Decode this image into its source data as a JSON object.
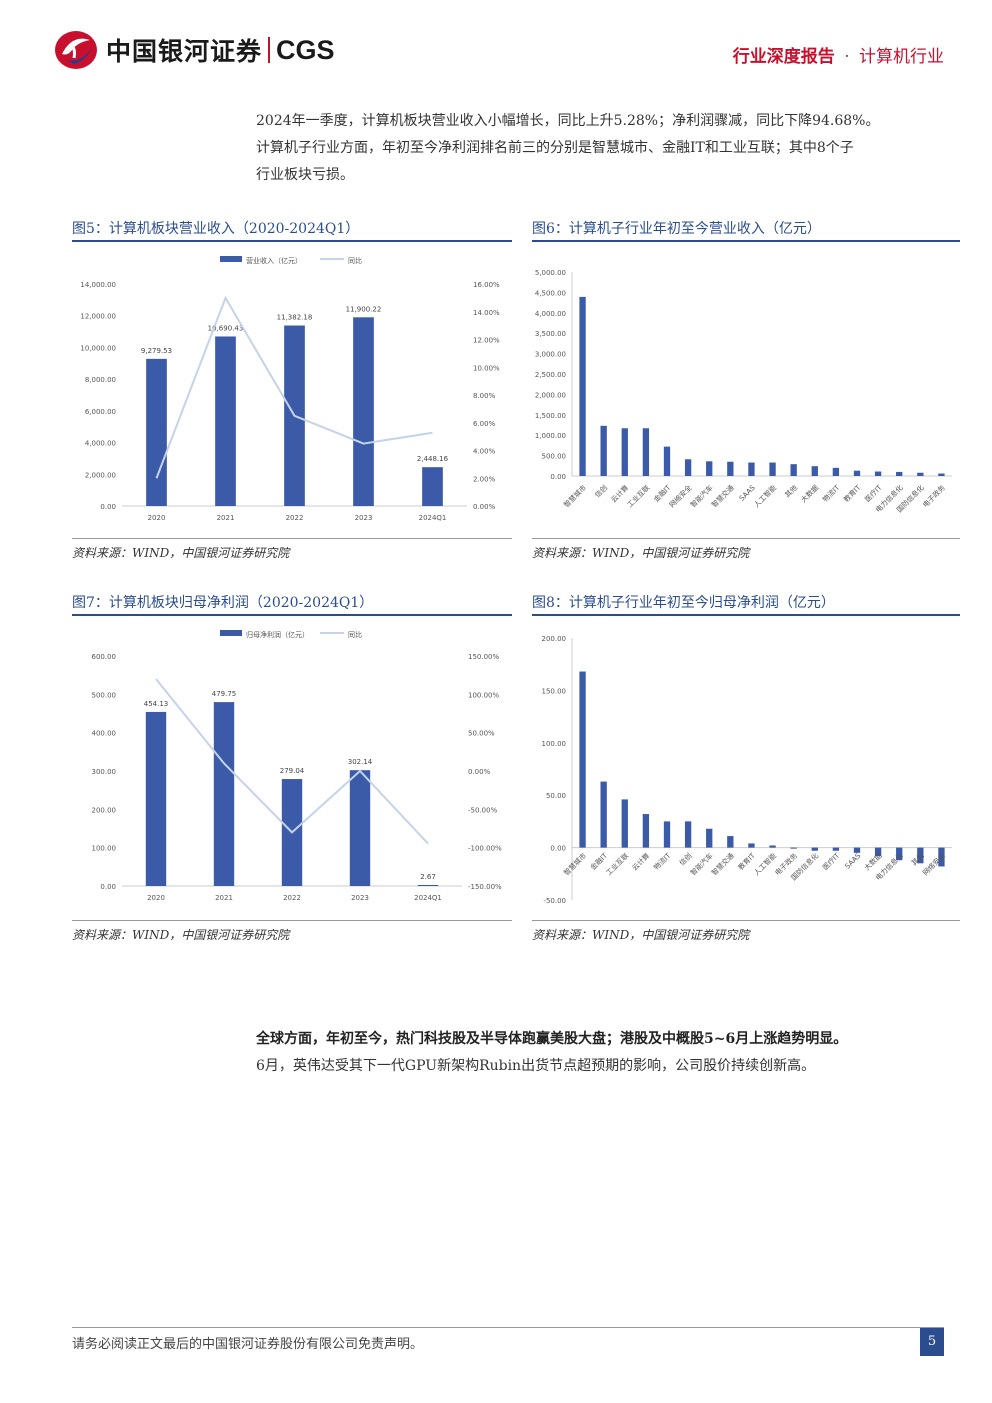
{
  "header": {
    "logo_text": "中国银河证券",
    "logo_cgs": "CGS",
    "report_type": "行业深度报告",
    "separator": "·",
    "industry": "计算机行业"
  },
  "intro_paragraph": {
    "line1": "2024年一季度，计算机板块营业收入小幅增长，同比上升5.28%；净利润骤减，同比下降94.68%。",
    "line2": "计算机子行业方面，年初至今净利润排名前三的分别是智慧城市、金融IT和工业互联；其中8个子",
    "line3": "行业板块亏损。"
  },
  "fig5": {
    "title": "图5：计算机板块营业收入（2020-2024Q1）",
    "source": "资料来源：WIND，中国银河证券研究院"
  },
  "fig6": {
    "title": "图6：计算机子行业年初至今营业收入（亿元）",
    "source": "资料来源：WIND，中国银河证券研究院"
  },
  "fig7": {
    "title": "图7：计算机板块归母净利润（2020-2024Q1）",
    "source": "资料来源：WIND，中国银河证券研究院"
  },
  "fig8": {
    "title": "图8：计算机子行业年初至今归母净利润（亿元）",
    "source": "资料来源：WIND，中国银河证券研究院"
  },
  "chart_data": [
    {
      "id": "fig5",
      "type": "bar",
      "categories": [
        "2020",
        "2021",
        "2022",
        "2023",
        "2024Q1"
      ],
      "series": [
        {
          "name": "营业收入（亿元）",
          "type": "bar",
          "axis": "left",
          "values": [
            9279.53,
            10690.43,
            11382.18,
            11900.22,
            2448.16
          ],
          "labels": [
            "9,279.53",
            "10,690.43",
            "11,382.18",
            "11,900.22",
            "2,448.16"
          ]
        },
        {
          "name": "同比",
          "type": "line",
          "axis": "right",
          "values": [
            2.0,
            15.0,
            6.5,
            4.5,
            5.28
          ]
        }
      ],
      "yticks_left": [
        "0.00",
        "2,000.00",
        "4,000.00",
        "6,000.00",
        "8,000.00",
        "10,000.00",
        "12,000.00",
        "14,000.00"
      ],
      "yticks_right": [
        "0.00%",
        "2.00%",
        "4.00%",
        "6.00%",
        "8.00%",
        "10.00%",
        "12.00%",
        "14.00%",
        "16.00%"
      ],
      "ylim_left": [
        0,
        14000
      ],
      "ylim_right": [
        0,
        16
      ],
      "legend": "top",
      "bar_color": "#3b5ba9",
      "line_color": "#c5d3ea"
    },
    {
      "id": "fig6",
      "type": "bar",
      "categories": [
        "智慧城市",
        "信创",
        "云计算",
        "工业互联",
        "金融IT",
        "网络安全",
        "智能汽车",
        "智慧交通",
        "SAAS",
        "人工智能",
        "其他",
        "大数据",
        "物流IT",
        "教育IT",
        "医疗IT",
        "电力信息化",
        "国防信息化",
        "电子政务"
      ],
      "values": [
        4390,
        1230,
        1170,
        1170,
        720,
        410,
        360,
        350,
        330,
        330,
        290,
        240,
        200,
        130,
        110,
        100,
        80,
        60
      ],
      "yticks": [
        "0.00",
        "500.00",
        "1,000.00",
        "1,500.00",
        "2,000.00",
        "2,500.00",
        "3,000.00",
        "3,500.00",
        "4,000.00",
        "4,500.00",
        "5,000.00"
      ],
      "ylim": [
        0,
        5000
      ],
      "bar_color": "#3b5ba9"
    },
    {
      "id": "fig7",
      "type": "bar",
      "categories": [
        "2020",
        "2021",
        "2022",
        "2023",
        "2024Q1"
      ],
      "series": [
        {
          "name": "归母净利润（亿元）",
          "type": "bar",
          "axis": "left",
          "values": [
            454.13,
            479.75,
            279.04,
            302.14,
            2.67
          ],
          "labels": [
            "454.13",
            "479.75",
            "279.04",
            "302.14",
            "2.67"
          ]
        },
        {
          "name": "同比",
          "type": "line",
          "axis": "right",
          "values": [
            120,
            10,
            -80,
            0,
            -94.68
          ]
        }
      ],
      "yticks_left": [
        "0.00",
        "100.00",
        "200.00",
        "300.00",
        "400.00",
        "500.00",
        "600.00"
      ],
      "yticks_right": [
        "-150.00%",
        "-100.00%",
        "-50.00%",
        "0.00%",
        "50.00%",
        "100.00%",
        "150.00%"
      ],
      "ylim_left": [
        0,
        600
      ],
      "ylim_right": [
        -150,
        150
      ],
      "legend": "top",
      "bar_color": "#3b5ba9",
      "line_color": "#c5d3ea"
    },
    {
      "id": "fig8",
      "type": "bar",
      "categories": [
        "智慧城市",
        "金融IT",
        "工业互联",
        "云计算",
        "物流IT",
        "信创",
        "智能汽车",
        "智慧交通",
        "教育IT",
        "人工智能",
        "电子政务",
        "国防信息化",
        "医疗IT",
        "SAAS",
        "大数据",
        "电力信息化",
        "其他",
        "网络安全"
      ],
      "values": [
        168,
        63,
        46,
        32,
        25,
        25,
        18,
        11,
        4,
        2,
        -1,
        -3,
        -3,
        -5,
        -8,
        -12,
        -15,
        -18
      ],
      "yticks": [
        "-50.00",
        "0.00",
        "50.00",
        "100.00",
        "150.00",
        "200.00"
      ],
      "ylim": [
        -50,
        200
      ],
      "bar_color": "#3b5ba9"
    }
  ],
  "global_paragraph": {
    "bold": "全球方面，年初至今，热门科技股及半导体跑赢美股大盘；港股及中概股5~6月上涨趋势明显。",
    "line2": "6月，英伟达受其下一代GPU新架构Rubin出货节点超预期的影响，公司股价持续创新高。"
  },
  "footer": {
    "disclaimer": "请务必阅读正文最后的中国银河证券股份有限公司免责声明。",
    "page": "5"
  }
}
